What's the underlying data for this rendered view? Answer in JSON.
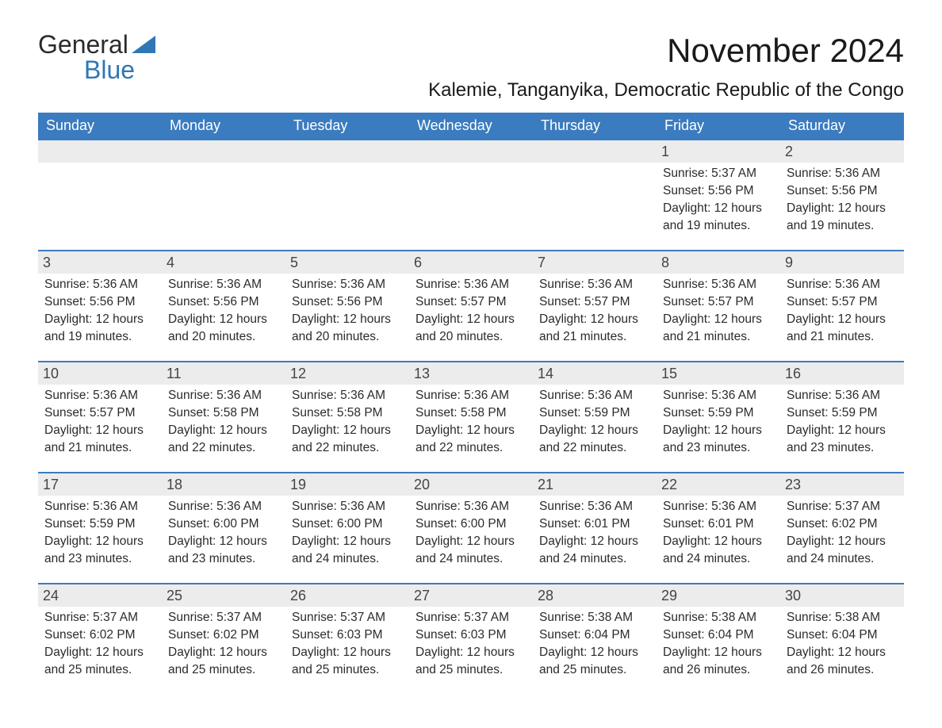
{
  "logo": {
    "top": "General",
    "bottom": "Blue",
    "flag_color": "#2f77b5"
  },
  "title": "November 2024",
  "location": "Kalemie, Tanganyika, Democratic Republic of the Congo",
  "colors": {
    "header_bg": "#3b7bbf",
    "header_text": "#ffffff",
    "daynum_bg": "#ececec",
    "row_border": "#3b7bbf",
    "text": "#2b2b2b"
  },
  "day_headers": [
    "Sunday",
    "Monday",
    "Tuesday",
    "Wednesday",
    "Thursday",
    "Friday",
    "Saturday"
  ],
  "weeks": [
    [
      null,
      null,
      null,
      null,
      null,
      {
        "n": "1",
        "sr": "Sunrise: 5:37 AM",
        "ss": "Sunset: 5:56 PM",
        "d1": "Daylight: 12 hours",
        "d2": "and 19 minutes."
      },
      {
        "n": "2",
        "sr": "Sunrise: 5:36 AM",
        "ss": "Sunset: 5:56 PM",
        "d1": "Daylight: 12 hours",
        "d2": "and 19 minutes."
      }
    ],
    [
      {
        "n": "3",
        "sr": "Sunrise: 5:36 AM",
        "ss": "Sunset: 5:56 PM",
        "d1": "Daylight: 12 hours",
        "d2": "and 19 minutes."
      },
      {
        "n": "4",
        "sr": "Sunrise: 5:36 AM",
        "ss": "Sunset: 5:56 PM",
        "d1": "Daylight: 12 hours",
        "d2": "and 20 minutes."
      },
      {
        "n": "5",
        "sr": "Sunrise: 5:36 AM",
        "ss": "Sunset: 5:56 PM",
        "d1": "Daylight: 12 hours",
        "d2": "and 20 minutes."
      },
      {
        "n": "6",
        "sr": "Sunrise: 5:36 AM",
        "ss": "Sunset: 5:57 PM",
        "d1": "Daylight: 12 hours",
        "d2": "and 20 minutes."
      },
      {
        "n": "7",
        "sr": "Sunrise: 5:36 AM",
        "ss": "Sunset: 5:57 PM",
        "d1": "Daylight: 12 hours",
        "d2": "and 21 minutes."
      },
      {
        "n": "8",
        "sr": "Sunrise: 5:36 AM",
        "ss": "Sunset: 5:57 PM",
        "d1": "Daylight: 12 hours",
        "d2": "and 21 minutes."
      },
      {
        "n": "9",
        "sr": "Sunrise: 5:36 AM",
        "ss": "Sunset: 5:57 PM",
        "d1": "Daylight: 12 hours",
        "d2": "and 21 minutes."
      }
    ],
    [
      {
        "n": "10",
        "sr": "Sunrise: 5:36 AM",
        "ss": "Sunset: 5:57 PM",
        "d1": "Daylight: 12 hours",
        "d2": "and 21 minutes."
      },
      {
        "n": "11",
        "sr": "Sunrise: 5:36 AM",
        "ss": "Sunset: 5:58 PM",
        "d1": "Daylight: 12 hours",
        "d2": "and 22 minutes."
      },
      {
        "n": "12",
        "sr": "Sunrise: 5:36 AM",
        "ss": "Sunset: 5:58 PM",
        "d1": "Daylight: 12 hours",
        "d2": "and 22 minutes."
      },
      {
        "n": "13",
        "sr": "Sunrise: 5:36 AM",
        "ss": "Sunset: 5:58 PM",
        "d1": "Daylight: 12 hours",
        "d2": "and 22 minutes."
      },
      {
        "n": "14",
        "sr": "Sunrise: 5:36 AM",
        "ss": "Sunset: 5:59 PM",
        "d1": "Daylight: 12 hours",
        "d2": "and 22 minutes."
      },
      {
        "n": "15",
        "sr": "Sunrise: 5:36 AM",
        "ss": "Sunset: 5:59 PM",
        "d1": "Daylight: 12 hours",
        "d2": "and 23 minutes."
      },
      {
        "n": "16",
        "sr": "Sunrise: 5:36 AM",
        "ss": "Sunset: 5:59 PM",
        "d1": "Daylight: 12 hours",
        "d2": "and 23 minutes."
      }
    ],
    [
      {
        "n": "17",
        "sr": "Sunrise: 5:36 AM",
        "ss": "Sunset: 5:59 PM",
        "d1": "Daylight: 12 hours",
        "d2": "and 23 minutes."
      },
      {
        "n": "18",
        "sr": "Sunrise: 5:36 AM",
        "ss": "Sunset: 6:00 PM",
        "d1": "Daylight: 12 hours",
        "d2": "and 23 minutes."
      },
      {
        "n": "19",
        "sr": "Sunrise: 5:36 AM",
        "ss": "Sunset: 6:00 PM",
        "d1": "Daylight: 12 hours",
        "d2": "and 24 minutes."
      },
      {
        "n": "20",
        "sr": "Sunrise: 5:36 AM",
        "ss": "Sunset: 6:00 PM",
        "d1": "Daylight: 12 hours",
        "d2": "and 24 minutes."
      },
      {
        "n": "21",
        "sr": "Sunrise: 5:36 AM",
        "ss": "Sunset: 6:01 PM",
        "d1": "Daylight: 12 hours",
        "d2": "and 24 minutes."
      },
      {
        "n": "22",
        "sr": "Sunrise: 5:36 AM",
        "ss": "Sunset: 6:01 PM",
        "d1": "Daylight: 12 hours",
        "d2": "and 24 minutes."
      },
      {
        "n": "23",
        "sr": "Sunrise: 5:37 AM",
        "ss": "Sunset: 6:02 PM",
        "d1": "Daylight: 12 hours",
        "d2": "and 24 minutes."
      }
    ],
    [
      {
        "n": "24",
        "sr": "Sunrise: 5:37 AM",
        "ss": "Sunset: 6:02 PM",
        "d1": "Daylight: 12 hours",
        "d2": "and 25 minutes."
      },
      {
        "n": "25",
        "sr": "Sunrise: 5:37 AM",
        "ss": "Sunset: 6:02 PM",
        "d1": "Daylight: 12 hours",
        "d2": "and 25 minutes."
      },
      {
        "n": "26",
        "sr": "Sunrise: 5:37 AM",
        "ss": "Sunset: 6:03 PM",
        "d1": "Daylight: 12 hours",
        "d2": "and 25 minutes."
      },
      {
        "n": "27",
        "sr": "Sunrise: 5:37 AM",
        "ss": "Sunset: 6:03 PM",
        "d1": "Daylight: 12 hours",
        "d2": "and 25 minutes."
      },
      {
        "n": "28",
        "sr": "Sunrise: 5:38 AM",
        "ss": "Sunset: 6:04 PM",
        "d1": "Daylight: 12 hours",
        "d2": "and 25 minutes."
      },
      {
        "n": "29",
        "sr": "Sunrise: 5:38 AM",
        "ss": "Sunset: 6:04 PM",
        "d1": "Daylight: 12 hours",
        "d2": "and 26 minutes."
      },
      {
        "n": "30",
        "sr": "Sunrise: 5:38 AM",
        "ss": "Sunset: 6:04 PM",
        "d1": "Daylight: 12 hours",
        "d2": "and 26 minutes."
      }
    ]
  ]
}
